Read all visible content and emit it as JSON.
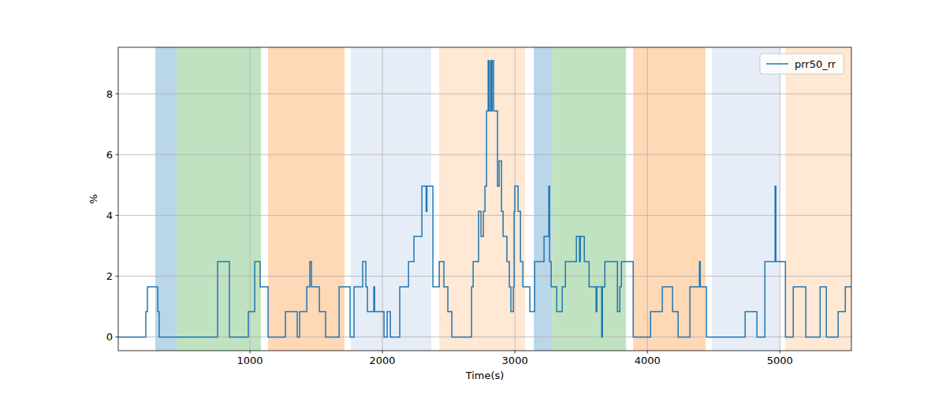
{
  "chart_data": {
    "type": "line",
    "x_label": "Time(s)",
    "y_label": "%",
    "xlim": [
      6,
      5540
    ],
    "ylim": [
      -0.45,
      9.53
    ],
    "xticks": [
      1000,
      2000,
      3000,
      4000,
      5000
    ],
    "yticks": [
      0,
      2,
      4,
      6,
      8
    ],
    "grid": true,
    "legend": "upper-right",
    "line_style": "steps-post",
    "regions": [
      {
        "start": 286,
        "end": 446,
        "color": "#bad6e9"
      },
      {
        "start": 446,
        "end": 1083,
        "color": "#c0e2c0"
      },
      {
        "start": 1137,
        "end": 1714,
        "color": "#ffd8b6"
      },
      {
        "start": 1762,
        "end": 2369,
        "color": "#e6edf7"
      },
      {
        "start": 2429,
        "end": 3077,
        "color": "#ffe8d4"
      },
      {
        "start": 3143,
        "end": 3280,
        "color": "#bad6e9"
      },
      {
        "start": 3280,
        "end": 3839,
        "color": "#c0e2c0"
      },
      {
        "start": 3893,
        "end": 4440,
        "color": "#ffd8b6"
      },
      {
        "start": 4488,
        "end": 5000,
        "color": "#e6edf7"
      },
      {
        "start": 5042,
        "end": 5540,
        "color": "#ffe8d4"
      }
    ],
    "x": [
      6,
      214,
      226,
      304,
      315,
      756,
      845,
      988,
      1036,
      1077,
      1137,
      1268,
      1357,
      1375,
      1429,
      1452,
      1464,
      1524,
      1571,
      1673,
      1756,
      1786,
      1851,
      1875,
      1887,
      1935,
      1941,
      2012,
      2036,
      2060,
      2131,
      2197,
      2238,
      2298,
      2330,
      2336,
      2381,
      2429,
      2464,
      2494,
      2524,
      2673,
      2685,
      2726,
      2744,
      2762,
      2774,
      2786,
      2798,
      2804,
      2816,
      2822,
      2828,
      2840,
      2869,
      2881,
      2899,
      2911,
      2940,
      2958,
      2970,
      2988,
      2994,
      3000,
      3024,
      3042,
      3060,
      3113,
      3149,
      3220,
      3256,
      3262,
      3274,
      3316,
      3357,
      3381,
      3464,
      3488,
      3494,
      3524,
      3560,
      3613,
      3619,
      3655,
      3661,
      3679,
      3774,
      3792,
      3804,
      3893,
      4024,
      4113,
      4190,
      4232,
      4321,
      4393,
      4399,
      4446,
      4738,
      4827,
      4887,
      4964,
      4970,
      5042,
      5101,
      5196,
      5304,
      5351,
      5440,
      5494
    ],
    "series": [
      {
        "name": "prr50_rr",
        "color": "#1f77b4",
        "values": [
          0,
          0.83,
          1.65,
          0.83,
          0,
          2.48,
          0,
          0.83,
          2.48,
          1.65,
          0,
          0.83,
          0,
          0.83,
          1.65,
          2.48,
          1.65,
          0.83,
          0,
          1.65,
          0,
          1.65,
          2.48,
          1.65,
          0.83,
          1.65,
          0.83,
          0,
          0.83,
          0,
          1.65,
          2.48,
          3.31,
          4.96,
          4.13,
          4.96,
          1.65,
          2.48,
          1.65,
          0.83,
          0,
          1.65,
          2.48,
          4.13,
          3.31,
          4.13,
          4.96,
          7.44,
          9.09,
          7.44,
          9.09,
          7.44,
          9.09,
          7.44,
          4.96,
          5.79,
          4.13,
          3.31,
          2.48,
          1.65,
          0.83,
          1.65,
          4.13,
          4.96,
          4.13,
          2.48,
          1.65,
          0.83,
          2.48,
          3.31,
          4.96,
          2.48,
          1.65,
          0.83,
          1.65,
          2.48,
          3.31,
          2.48,
          3.31,
          2.48,
          1.65,
          0.83,
          1.65,
          0,
          1.65,
          2.48,
          0.83,
          1.65,
          2.48,
          0,
          0.83,
          1.65,
          0.83,
          0,
          1.65,
          2.48,
          1.65,
          0,
          0.83,
          0,
          2.48,
          4.96,
          2.48,
          0,
          1.65,
          0,
          1.65,
          0,
          0.83,
          1.65
        ]
      }
    ]
  }
}
